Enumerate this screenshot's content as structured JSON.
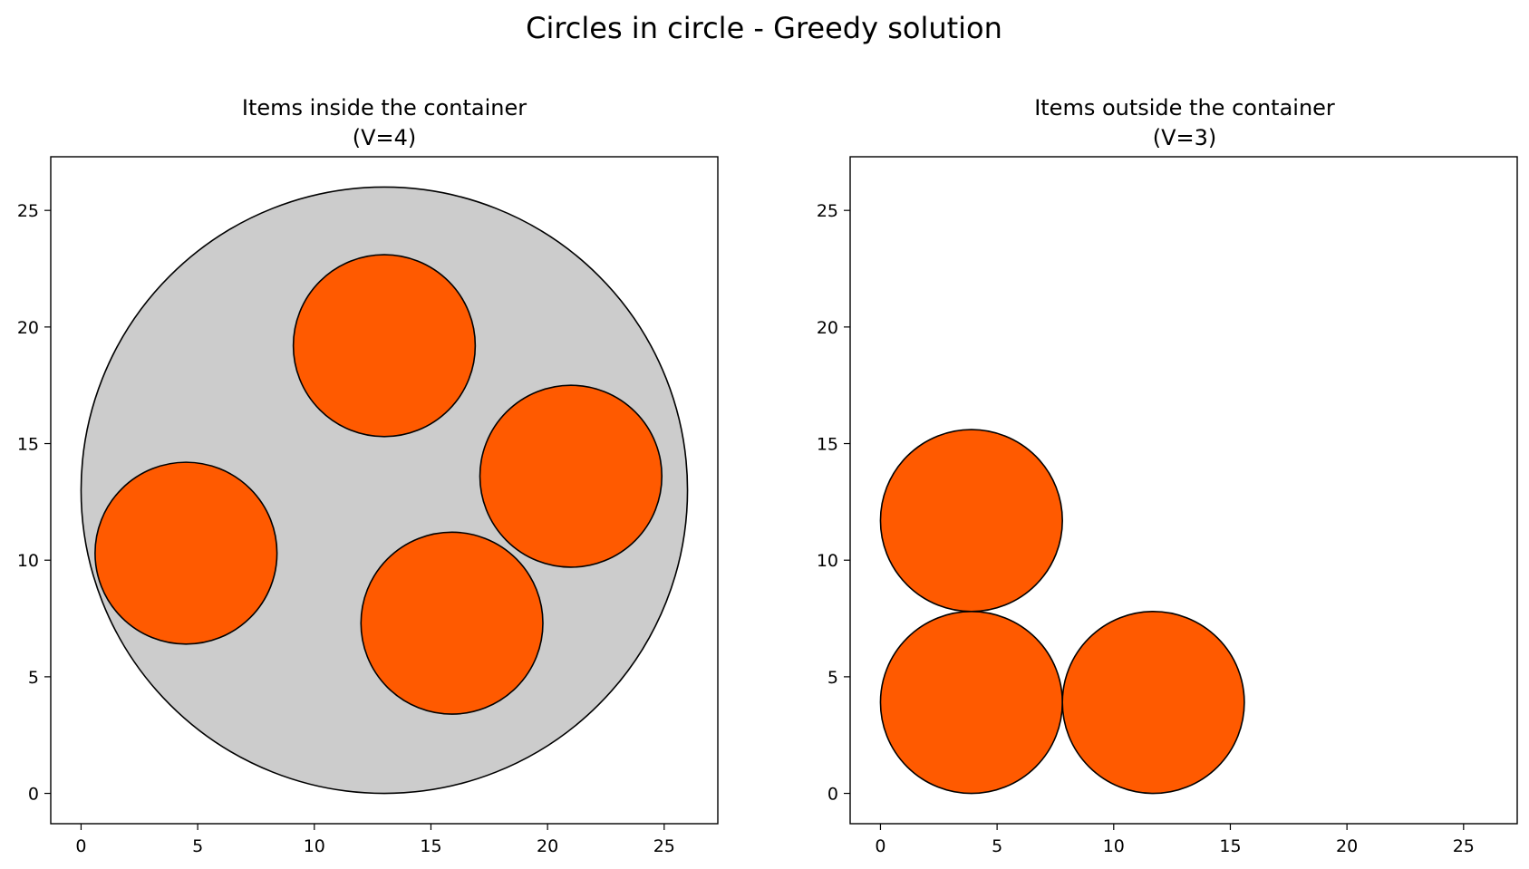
{
  "chart_data": {
    "title": "Circles in circle - Greedy solution",
    "subplots": [
      {
        "type": "scatter",
        "title_line1": "Items inside the container",
        "title_line2": "(V=4)",
        "xlim": [
          -1.3,
          27.3
        ],
        "ylim": [
          -1.3,
          27.3
        ],
        "xticks": [
          0,
          5,
          10,
          15,
          20,
          25
        ],
        "yticks": [
          0,
          5,
          10,
          15,
          20,
          25
        ],
        "container": {
          "cx": 13,
          "cy": 13,
          "r": 13,
          "fill": "#cccccc"
        },
        "circles": [
          {
            "cx": 13.0,
            "cy": 19.2,
            "r": 3.9
          },
          {
            "cx": 21.0,
            "cy": 13.6,
            "r": 3.9
          },
          {
            "cx": 4.5,
            "cy": 10.3,
            "r": 3.9
          },
          {
            "cx": 15.9,
            "cy": 7.3,
            "r": 3.9
          }
        ]
      },
      {
        "type": "scatter",
        "title_line1": "Items outside the container",
        "title_line2": "(V=3)",
        "xlim": [
          -1.3,
          27.3
        ],
        "ylim": [
          -1.3,
          27.3
        ],
        "xticks": [
          0,
          5,
          10,
          15,
          20,
          25
        ],
        "yticks": [
          0,
          5,
          10,
          15,
          20,
          25
        ],
        "container": null,
        "circles": [
          {
            "cx": 3.9,
            "cy": 11.7,
            "r": 3.9
          },
          {
            "cx": 3.9,
            "cy": 3.9,
            "r": 3.9
          },
          {
            "cx": 11.7,
            "cy": 3.9,
            "r": 3.9
          }
        ]
      }
    ],
    "item_fill": "#ff5a00",
    "edge_color": "#000000"
  }
}
